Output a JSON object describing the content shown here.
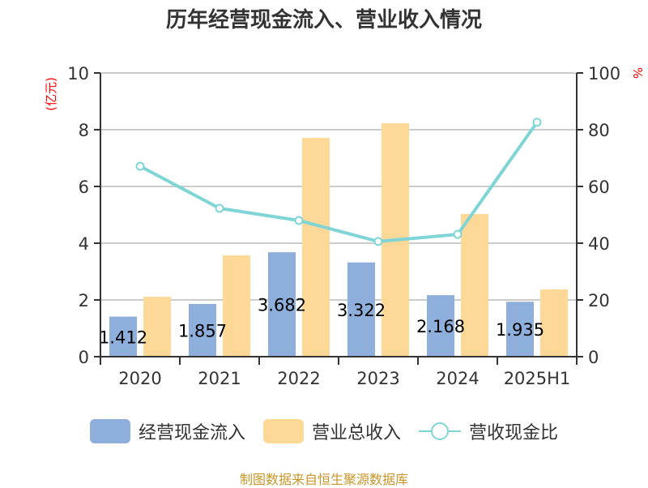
{
  "title": "历年经营现金流入、营业收入情况",
  "footer": "制图数据来自恒生聚源数据库",
  "axes": {
    "left_unit": "(亿元)",
    "right_unit": "%",
    "left_ticks": [
      "0",
      "2",
      "4",
      "6",
      "8",
      "10"
    ],
    "right_ticks": [
      "0",
      "20",
      "40",
      "60",
      "80",
      "100"
    ]
  },
  "legend": {
    "items": [
      {
        "label": "经营现金流入",
        "color": "#8eaedb",
        "type": "bar"
      },
      {
        "label": "营业总收入",
        "color": "#fed897",
        "type": "bar"
      },
      {
        "label": "营收现金比",
        "color": "#7fd5d6",
        "type": "line"
      }
    ]
  },
  "colors": {
    "cash_inflow": "#8eaedb",
    "revenue": "#fed897",
    "ratio_line": "#7fd5d6",
    "grid": "#cccccc",
    "axis": "#333333"
  },
  "chart_data": {
    "type": "bar",
    "title": "历年经营现金流入、营业收入情况",
    "categories": [
      "2020",
      "2021",
      "2022",
      "2023",
      "2024",
      "2025H1"
    ],
    "xlabel": "",
    "ylabel": "(亿元)",
    "ylim": [
      0,
      10
    ],
    "y2label": "%",
    "y2lim": [
      0,
      100
    ],
    "grid": true,
    "legend_position": "bottom",
    "series": [
      {
        "name": "经营现金流入",
        "type": "bar",
        "axis": "left",
        "values": [
          1.412,
          1.857,
          3.682,
          3.322,
          2.168,
          1.935
        ],
        "labels": [
          "1.412",
          "1.857",
          "3.682",
          "3.322",
          "2.168",
          "1.935"
        ]
      },
      {
        "name": "营业总收入",
        "type": "bar",
        "axis": "left",
        "values": [
          2.11,
          3.57,
          7.71,
          8.23,
          5.03,
          2.37
        ]
      },
      {
        "name": "营收现金比",
        "type": "line",
        "axis": "right",
        "values": [
          67.1,
          52.3,
          48.0,
          40.6,
          43.1,
          82.6
        ]
      }
    ]
  }
}
